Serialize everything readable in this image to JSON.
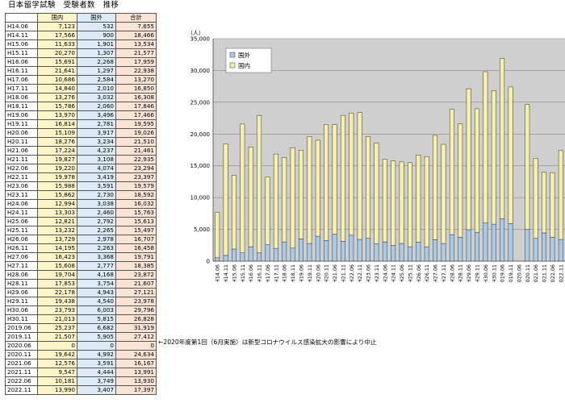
{
  "table": {
    "title": "日本留学試験　受験者数　推移",
    "headers": {
      "session": "",
      "domestic": "国内",
      "abroad": "国外",
      "total": "合計"
    },
    "rows": [
      {
        "session": "H14.06",
        "domestic": "7,123",
        "abroad": "532",
        "total": "7,655"
      },
      {
        "session": "H14.11",
        "domestic": "17,566",
        "abroad": "900",
        "total": "18,466"
      },
      {
        "session": "H15.06",
        "domestic": "11,633",
        "abroad": "1,901",
        "total": "13,534"
      },
      {
        "session": "H15.11",
        "domestic": "20,270",
        "abroad": "1,307",
        "total": "21,577"
      },
      {
        "session": "H16.06",
        "domestic": "15,691",
        "abroad": "2,268",
        "total": "17,959"
      },
      {
        "session": "H16.11",
        "domestic": "21,641",
        "abroad": "1,297",
        "total": "22,938"
      },
      {
        "session": "H17.06",
        "domestic": "10,686",
        "abroad": "2,584",
        "total": "13,270"
      },
      {
        "session": "H17.11",
        "domestic": "14,840",
        "abroad": "2,010",
        "total": "16,850"
      },
      {
        "session": "H18.06",
        "domestic": "13,276",
        "abroad": "3,032",
        "total": "16,308"
      },
      {
        "session": "H18.11",
        "domestic": "15,786",
        "abroad": "2,060",
        "total": "17,846"
      },
      {
        "session": "H19.06",
        "domestic": "13,970",
        "abroad": "3,496",
        "total": "17,466"
      },
      {
        "session": "H19.11",
        "domestic": "16,814",
        "abroad": "2,781",
        "total": "19,595"
      },
      {
        "session": "H20.06",
        "domestic": "15,109",
        "abroad": "3,917",
        "total": "19,026"
      },
      {
        "session": "H20.11",
        "domestic": "18,276",
        "abroad": "3,234",
        "total": "21,510"
      },
      {
        "session": "H21.06",
        "domestic": "17,224",
        "abroad": "4,237",
        "total": "21,461"
      },
      {
        "session": "H21.11",
        "domestic": "19,827",
        "abroad": "3,108",
        "total": "22,935"
      },
      {
        "session": "H22.06",
        "domestic": "19,220",
        "abroad": "4,074",
        "total": "23,294"
      },
      {
        "session": "H22.11",
        "domestic": "19,978",
        "abroad": "3,419",
        "total": "23,397"
      },
      {
        "session": "H23.06",
        "domestic": "15,988",
        "abroad": "3,591",
        "total": "19,579"
      },
      {
        "session": "H23.11",
        "domestic": "15,862",
        "abroad": "2,730",
        "total": "18,592"
      },
      {
        "session": "H24.06",
        "domestic": "12,994",
        "abroad": "3,038",
        "total": "16,032"
      },
      {
        "session": "H24.11",
        "domestic": "13,303",
        "abroad": "2,460",
        "total": "15,763"
      },
      {
        "session": "H25.06",
        "domestic": "12,821",
        "abroad": "2,792",
        "total": "15,613"
      },
      {
        "session": "H25.11",
        "domestic": "13,232",
        "abroad": "2,265",
        "total": "15,497"
      },
      {
        "session": "H26.06",
        "domestic": "13,729",
        "abroad": "2,978",
        "total": "16,707"
      },
      {
        "session": "H26.11",
        "domestic": "14,195",
        "abroad": "2,263",
        "total": "16,458"
      },
      {
        "session": "H27.06",
        "domestic": "16,423",
        "abroad": "3,368",
        "total": "19,791"
      },
      {
        "session": "H27.11",
        "domestic": "15,608",
        "abroad": "2,777",
        "total": "18,385"
      },
      {
        "session": "H28.06",
        "domestic": "19,704",
        "abroad": "4,168",
        "total": "23,872"
      },
      {
        "session": "H28.11",
        "domestic": "17,853",
        "abroad": "3,754",
        "total": "21,607"
      },
      {
        "session": "H29.06",
        "domestic": "22,178",
        "abroad": "4,943",
        "total": "27,121"
      },
      {
        "session": "H29.11",
        "domestic": "19,438",
        "abroad": "4,540",
        "total": "23,978"
      },
      {
        "session": "H30.06",
        "domestic": "23,793",
        "abroad": "6,003",
        "total": "29,796"
      },
      {
        "session": "H30.11",
        "domestic": "21,013",
        "abroad": "5,815",
        "total": "26,828"
      },
      {
        "session": "2019.06",
        "domestic": "25,237",
        "abroad": "6,682",
        "total": "31,919"
      },
      {
        "session": "2019.11",
        "domestic": "21,507",
        "abroad": "5,905",
        "total": "27,412"
      },
      {
        "session": "2020.06",
        "domestic": "0",
        "abroad": "0",
        "total": "0"
      },
      {
        "session": "2020.11",
        "domestic": "19,642",
        "abroad": "4,992",
        "total": "24,634"
      },
      {
        "session": "2021.06",
        "domestic": "12,576",
        "abroad": "3,591",
        "total": "16,167"
      },
      {
        "session": "2021.11",
        "domestic": "9,547",
        "abroad": "4,444",
        "total": "13,991"
      },
      {
        "session": "2022.06",
        "domestic": "10,181",
        "abroad": "3,749",
        "total": "13,930"
      },
      {
        "session": "2022.11",
        "domestic": "13,990",
        "abroad": "3,407",
        "total": "17,397"
      }
    ]
  },
  "note": "←2020年度第1回（6月実施）は新型コロナウイルス感染拡大の影響により中止",
  "colors": {
    "domestic": "#f6efa8",
    "abroad": "#a9cbe8",
    "plot_bg": "#cfcfcf",
    "border": "#555555"
  },
  "chart_data": {
    "type": "bar",
    "stacked": true,
    "unit_label": "（人）",
    "ylim": [
      0,
      35000
    ],
    "yticks": [
      0,
      5000,
      10000,
      15000,
      20000,
      25000,
      30000,
      35000
    ],
    "ytick_labels": [
      "0",
      "5,000",
      "10,000",
      "15,000",
      "20,000",
      "25,000",
      "30,000",
      "35,000"
    ],
    "legend": {
      "position": "top-left",
      "entries": [
        "国外",
        "国内"
      ]
    },
    "categories": [
      "H14.06",
      "H14.11",
      "H15.06",
      "H15.11",
      "H16.06",
      "H16.11",
      "H17.06",
      "H17.11",
      "H18.06",
      "H18.11",
      "H19.06",
      "H19.11",
      "H20.06",
      "H20.11",
      "H21.06",
      "H21.11",
      "H22.06",
      "H22.11",
      "H23.06",
      "H23.11",
      "H24.06",
      "H24.11",
      "H25.06",
      "H25.11",
      "H26.06",
      "H26.11",
      "H27.06",
      "H27.11",
      "H28.06",
      "H28.11",
      "H29.06",
      "H29.11",
      "H30.06",
      "H30.11",
      "2019.06",
      "2019.11",
      "2020.06",
      "2020.11",
      "2021.06",
      "2021.11",
      "2022.06",
      "2022.11"
    ],
    "series": [
      {
        "name": "国外",
        "values": [
          532,
          900,
          1901,
          1307,
          2268,
          1297,
          2584,
          2010,
          3032,
          2060,
          3496,
          2781,
          3917,
          3234,
          4237,
          3108,
          4074,
          3419,
          3591,
          2730,
          3038,
          2460,
          2792,
          2265,
          2978,
          2263,
          3368,
          2777,
          4168,
          3754,
          4943,
          4540,
          6003,
          5815,
          6682,
          5905,
          0,
          4992,
          3591,
          4444,
          3749,
          3407
        ]
      },
      {
        "name": "国内",
        "values": [
          7123,
          17566,
          11633,
          20270,
          15691,
          21641,
          10686,
          14840,
          13276,
          15786,
          13970,
          16814,
          15109,
          18276,
          17224,
          19827,
          19220,
          19978,
          15988,
          15862,
          12994,
          13303,
          12821,
          13232,
          13729,
          14195,
          16423,
          15608,
          19704,
          17853,
          22178,
          19438,
          23793,
          21013,
          25237,
          21507,
          0,
          19642,
          12576,
          9547,
          10181,
          13990
        ]
      }
    ]
  }
}
